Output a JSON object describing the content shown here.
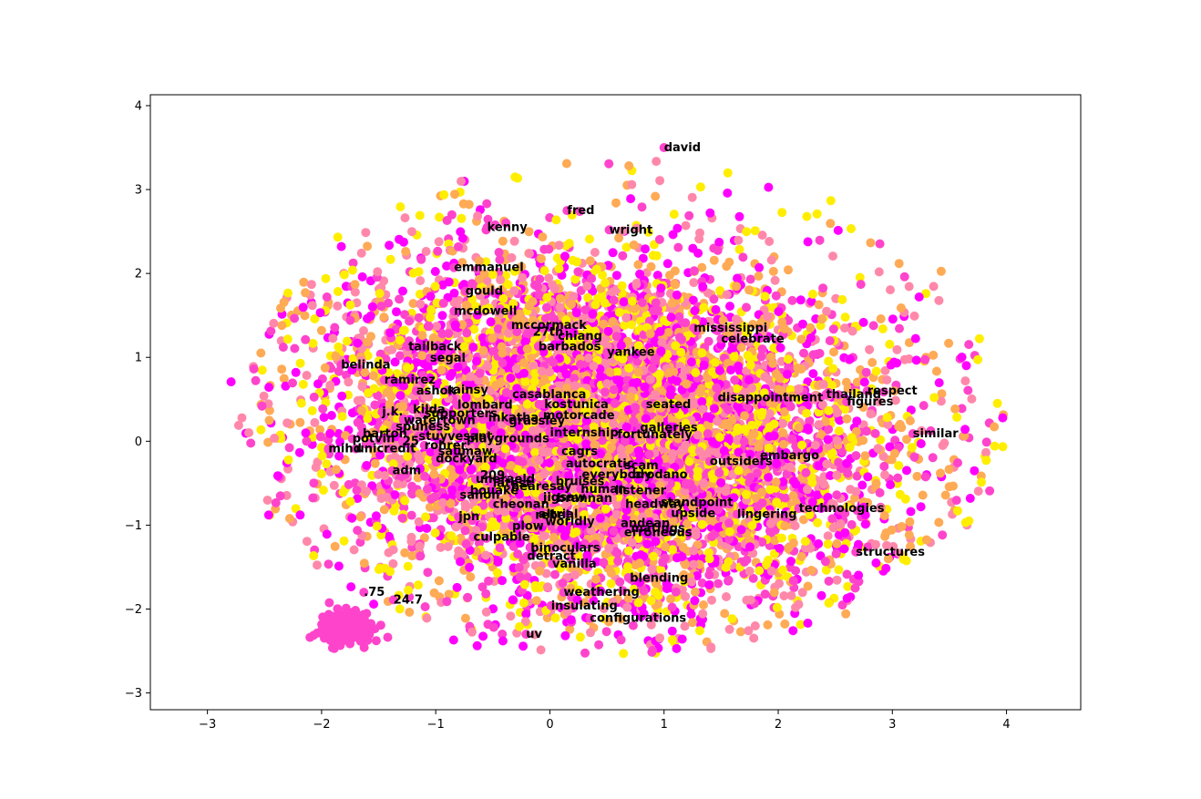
{
  "chart_data": {
    "type": "scatter",
    "title": "",
    "xlabel": "",
    "ylabel": "",
    "xlim": [
      -3.5,
      4.65
    ],
    "ylim": [
      -3.2,
      4.13
    ],
    "grid": false,
    "legend": "none",
    "x_ticks": [
      -3,
      -2,
      -1,
      0,
      1,
      2,
      3,
      4
    ],
    "y_ticks": [
      -3,
      -2,
      -1,
      0,
      1,
      2,
      3,
      4
    ],
    "colormap_colors": [
      "#ff00ff",
      "#ff44cc",
      "#ff88aa",
      "#ffaa55",
      "#ffee00"
    ],
    "labeled_points": [
      {
        "word": "david",
        "x": 1.0,
        "y": 3.5
      },
      {
        "word": "fred",
        "x": 0.15,
        "y": 2.75
      },
      {
        "word": "kenny",
        "x": -0.55,
        "y": 2.55
      },
      {
        "word": "wright",
        "x": 0.52,
        "y": 2.52
      },
      {
        "word": "emmanuel",
        "x": -0.84,
        "y": 2.07
      },
      {
        "word": "gould",
        "x": -0.74,
        "y": 1.79
      },
      {
        "word": "mcdowell",
        "x": -0.84,
        "y": 1.55
      },
      {
        "word": "mccormack",
        "x": -0.34,
        "y": 1.38
      },
      {
        "word": "27th",
        "x": -0.15,
        "y": 1.3
      },
      {
        "word": "chiang",
        "x": 0.07,
        "y": 1.25
      },
      {
        "word": "mississippi",
        "x": 1.26,
        "y": 1.35
      },
      {
        "word": "celebrate",
        "x": 1.5,
        "y": 1.22
      },
      {
        "word": "tailback",
        "x": -1.24,
        "y": 1.13
      },
      {
        "word": "barbados",
        "x": -0.1,
        "y": 1.13
      },
      {
        "word": "yankee",
        "x": 0.5,
        "y": 1.06
      },
      {
        "word": "segal",
        "x": -1.05,
        "y": 0.99
      },
      {
        "word": "belinda",
        "x": -1.83,
        "y": 0.91
      },
      {
        "word": "ramirez",
        "x": -1.45,
        "y": 0.73
      },
      {
        "word": "ashok",
        "x": -1.17,
        "y": 0.6
      },
      {
        "word": "rainsy",
        "x": -0.9,
        "y": 0.61
      },
      {
        "word": "casablanca",
        "x": -0.33,
        "y": 0.56
      },
      {
        "word": "lombard",
        "x": -0.81,
        "y": 0.43
      },
      {
        "word": "kostunica",
        "x": -0.05,
        "y": 0.44
      },
      {
        "word": "seated",
        "x": 0.84,
        "y": 0.44
      },
      {
        "word": "disappointment",
        "x": 1.47,
        "y": 0.52
      },
      {
        "word": "thailand",
        "x": 2.42,
        "y": 0.56
      },
      {
        "word": "respect",
        "x": 2.78,
        "y": 0.6
      },
      {
        "word": "figures",
        "x": 2.6,
        "y": 0.47
      },
      {
        "word": "j.k.",
        "x": -1.47,
        "y": 0.35
      },
      {
        "word": "kilda",
        "x": -1.2,
        "y": 0.38
      },
      {
        "word": "supporters",
        "x": -1.1,
        "y": 0.33
      },
      {
        "word": "motorcade",
        "x": -0.06,
        "y": 0.31
      },
      {
        "word": "inkatha",
        "x": -0.54,
        "y": 0.28
      },
      {
        "word": "watertown",
        "x": -1.28,
        "y": 0.25
      },
      {
        "word": "grassley",
        "x": -0.36,
        "y": 0.24
      },
      {
        "word": "spuness",
        "x": -1.35,
        "y": 0.17
      },
      {
        "word": "similar",
        "x": 3.18,
        "y": 0.09
      },
      {
        "word": "galleries",
        "x": 0.79,
        "y": 0.16
      },
      {
        "word": "internship",
        "x": 0.0,
        "y": 0.1
      },
      {
        "word": "fortunately",
        "x": 0.59,
        "y": 0.08
      },
      {
        "word": "barton",
        "x": -1.64,
        "y": 0.09
      },
      {
        "word": "stuyvesant",
        "x": -1.15,
        "y": 0.06
      },
      {
        "word": "playgrounds",
        "x": -0.73,
        "y": 0.03
      },
      {
        "word": "potvin",
        "x": -1.73,
        "y": 0.03
      },
      {
        "word": "25",
        "x": -1.29,
        "y": 0.0
      },
      {
        "word": "rohrer",
        "x": -1.1,
        "y": -0.05
      },
      {
        "word": "mihd",
        "x": -1.94,
        "y": -0.09
      },
      {
        "word": "unicredit",
        "x": -1.7,
        "y": -0.09
      },
      {
        "word": "saumaw",
        "x": -0.98,
        "y": -0.12
      },
      {
        "word": "cagrs",
        "x": 0.1,
        "y": -0.12
      },
      {
        "word": "embargo",
        "x": 1.84,
        "y": -0.17
      },
      {
        "word": "dockyard",
        "x": -1.0,
        "y": -0.21
      },
      {
        "word": "outsiders",
        "x": 1.4,
        "y": -0.24
      },
      {
        "word": "autocratic",
        "x": 0.14,
        "y": -0.27
      },
      {
        "word": "scam",
        "x": 0.65,
        "y": -0.29
      },
      {
        "word": "adm",
        "x": -1.38,
        "y": -0.35
      },
      {
        "word": "everybody",
        "x": 0.28,
        "y": -0.4
      },
      {
        "word": "brodano",
        "x": 0.72,
        "y": -0.4
      },
      {
        "word": "209",
        "x": -0.61,
        "y": -0.41
      },
      {
        "word": "uneraeld",
        "x": -0.65,
        "y": -0.45
      },
      {
        "word": "bruises",
        "x": 0.05,
        "y": -0.48
      },
      {
        "word": "latest",
        "x": -0.5,
        "y": -0.5
      },
      {
        "word": "hearesay",
        "x": -0.34,
        "y": -0.54
      },
      {
        "word": "human",
        "x": 0.27,
        "y": -0.57
      },
      {
        "word": "listener",
        "x": 0.57,
        "y": -0.59
      },
      {
        "word": "bouake",
        "x": -0.7,
        "y": -0.59
      },
      {
        "word": "sanon",
        "x": -0.79,
        "y": -0.64
      },
      {
        "word": "jigsaw",
        "x": -0.06,
        "y": -0.67
      },
      {
        "word": "brannan",
        "x": 0.06,
        "y": -0.68
      },
      {
        "word": "standpoint",
        "x": 0.97,
        "y": -0.73
      },
      {
        "word": "cheonan",
        "x": -0.5,
        "y": -0.75
      },
      {
        "word": "headway",
        "x": 0.66,
        "y": -0.75
      },
      {
        "word": "technologies",
        "x": 2.18,
        "y": -0.8
      },
      {
        "word": "upside",
        "x": 1.06,
        "y": -0.86
      },
      {
        "word": "lingering",
        "x": 1.64,
        "y": -0.87
      },
      {
        "word": "jpn",
        "x": -0.8,
        "y": -0.9
      },
      {
        "word": "altrial",
        "x": -0.1,
        "y": -0.87
      },
      {
        "word": "rebel",
        "x": -0.13,
        "y": -0.88
      },
      {
        "word": "worldly",
        "x": -0.04,
        "y": -0.96
      },
      {
        "word": "andean",
        "x": 0.62,
        "y": -0.98
      },
      {
        "word": "plow",
        "x": -0.33,
        "y": -1.01
      },
      {
        "word": "matings",
        "x": 0.71,
        "y": -1.04
      },
      {
        "word": "erroneous",
        "x": 0.65,
        "y": -1.09
      },
      {
        "word": "culpable",
        "x": -0.67,
        "y": -1.14
      },
      {
        "word": "binoculars",
        "x": -0.17,
        "y": -1.27
      },
      {
        "word": "structures",
        "x": 2.68,
        "y": -1.32
      },
      {
        "word": "detract",
        "x": -0.2,
        "y": -1.37
      },
      {
        "word": "vanilla",
        "x": 0.02,
        "y": -1.46
      },
      {
        "word": "blending",
        "x": 0.7,
        "y": -1.63
      },
      {
        "word": "weathering",
        "x": 0.12,
        "y": -1.8
      },
      {
        "word": ".75",
        "x": -1.63,
        "y": -1.8
      },
      {
        "word": "24.7",
        "x": -1.37,
        "y": -1.89
      },
      {
        "word": "insulating",
        "x": 0.01,
        "y": -1.96
      },
      {
        "word": "configurations",
        "x": 0.35,
        "y": -2.11
      },
      {
        "word": "uv",
        "x": -0.21,
        "y": -2.3
      }
    ]
  }
}
